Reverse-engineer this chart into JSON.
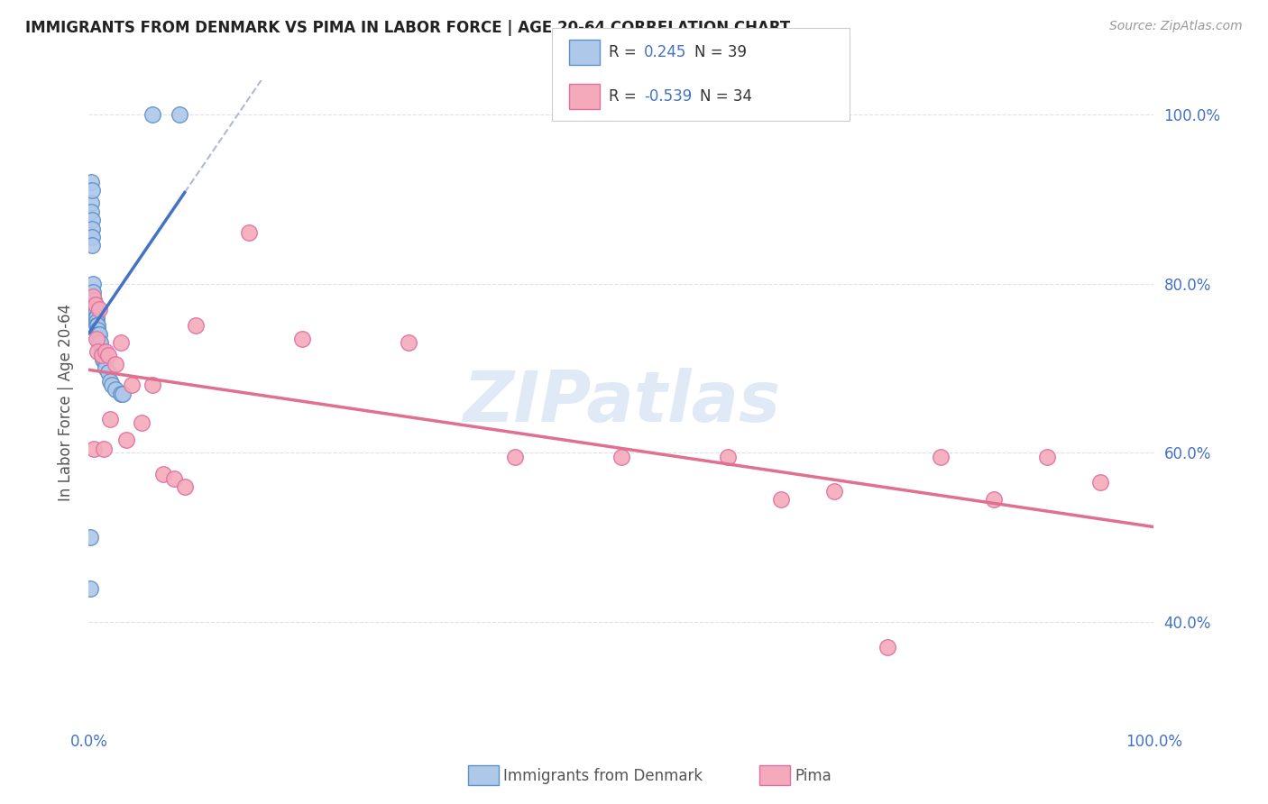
{
  "title": "IMMIGRANTS FROM DENMARK VS PIMA IN LABOR FORCE | AGE 20-64 CORRELATION CHART",
  "source": "Source: ZipAtlas.com",
  "ylabel": "In Labor Force | Age 20-64",
  "legend_dk_label": "Immigrants from Denmark",
  "legend_pima_label": "Pima",
  "legend_dk_R": "0.245",
  "legend_dk_N": "39",
  "legend_pima_R": "-0.539",
  "legend_pima_N": "34",
  "denmark_scatter_x": [
    0.001,
    0.001,
    0.002,
    0.002,
    0.003,
    0.003,
    0.003,
    0.003,
    0.004,
    0.004,
    0.005,
    0.005,
    0.005,
    0.006,
    0.006,
    0.006,
    0.007,
    0.007,
    0.007,
    0.008,
    0.008,
    0.009,
    0.01,
    0.01,
    0.011,
    0.012,
    0.013,
    0.015,
    0.016,
    0.018,
    0.02,
    0.022,
    0.025,
    0.03,
    0.032,
    0.002,
    0.003,
    0.06,
    0.085
  ],
  "denmark_scatter_y": [
    0.5,
    0.44,
    0.895,
    0.885,
    0.875,
    0.865,
    0.855,
    0.845,
    0.8,
    0.79,
    0.78,
    0.775,
    0.77,
    0.77,
    0.765,
    0.76,
    0.76,
    0.755,
    0.75,
    0.75,
    0.745,
    0.74,
    0.74,
    0.73,
    0.73,
    0.72,
    0.71,
    0.71,
    0.7,
    0.695,
    0.685,
    0.68,
    0.675,
    0.67,
    0.67,
    0.92,
    0.91,
    1.0,
    1.0
  ],
  "pima_scatter_x": [
    0.004,
    0.005,
    0.006,
    0.007,
    0.008,
    0.01,
    0.012,
    0.014,
    0.016,
    0.018,
    0.02,
    0.025,
    0.03,
    0.035,
    0.04,
    0.05,
    0.06,
    0.07,
    0.08,
    0.09,
    0.1,
    0.15,
    0.2,
    0.3,
    0.4,
    0.5,
    0.6,
    0.65,
    0.7,
    0.75,
    0.8,
    0.85,
    0.9,
    0.95
  ],
  "pima_scatter_y": [
    0.785,
    0.605,
    0.775,
    0.735,
    0.72,
    0.77,
    0.715,
    0.605,
    0.72,
    0.715,
    0.64,
    0.705,
    0.73,
    0.615,
    0.68,
    0.635,
    0.68,
    0.575,
    0.57,
    0.56,
    0.75,
    0.86,
    0.735,
    0.73,
    0.595,
    0.595,
    0.595,
    0.545,
    0.555,
    0.37,
    0.595,
    0.545,
    0.595,
    0.565
  ],
  "denmark_line_color": "#4472c4",
  "denmark_dashed_color": "#b0b8d8",
  "pima_line_color": "#e07090",
  "denmark_dot_face": "#adc8e8",
  "denmark_dot_edge": "#6090c8",
  "pima_dot_face": "#f4aabb",
  "pima_dot_edge": "#e070a0",
  "watermark": "ZIPatlas",
  "xlim": [
    0.0,
    1.0
  ],
  "ylim": [
    0.28,
    1.04
  ],
  "yticks": [
    0.4,
    0.6,
    0.8,
    1.0
  ],
  "ytick_labels": [
    "40.0%",
    "60.0%",
    "80.0%",
    "100.0%"
  ],
  "background_color": "#ffffff"
}
